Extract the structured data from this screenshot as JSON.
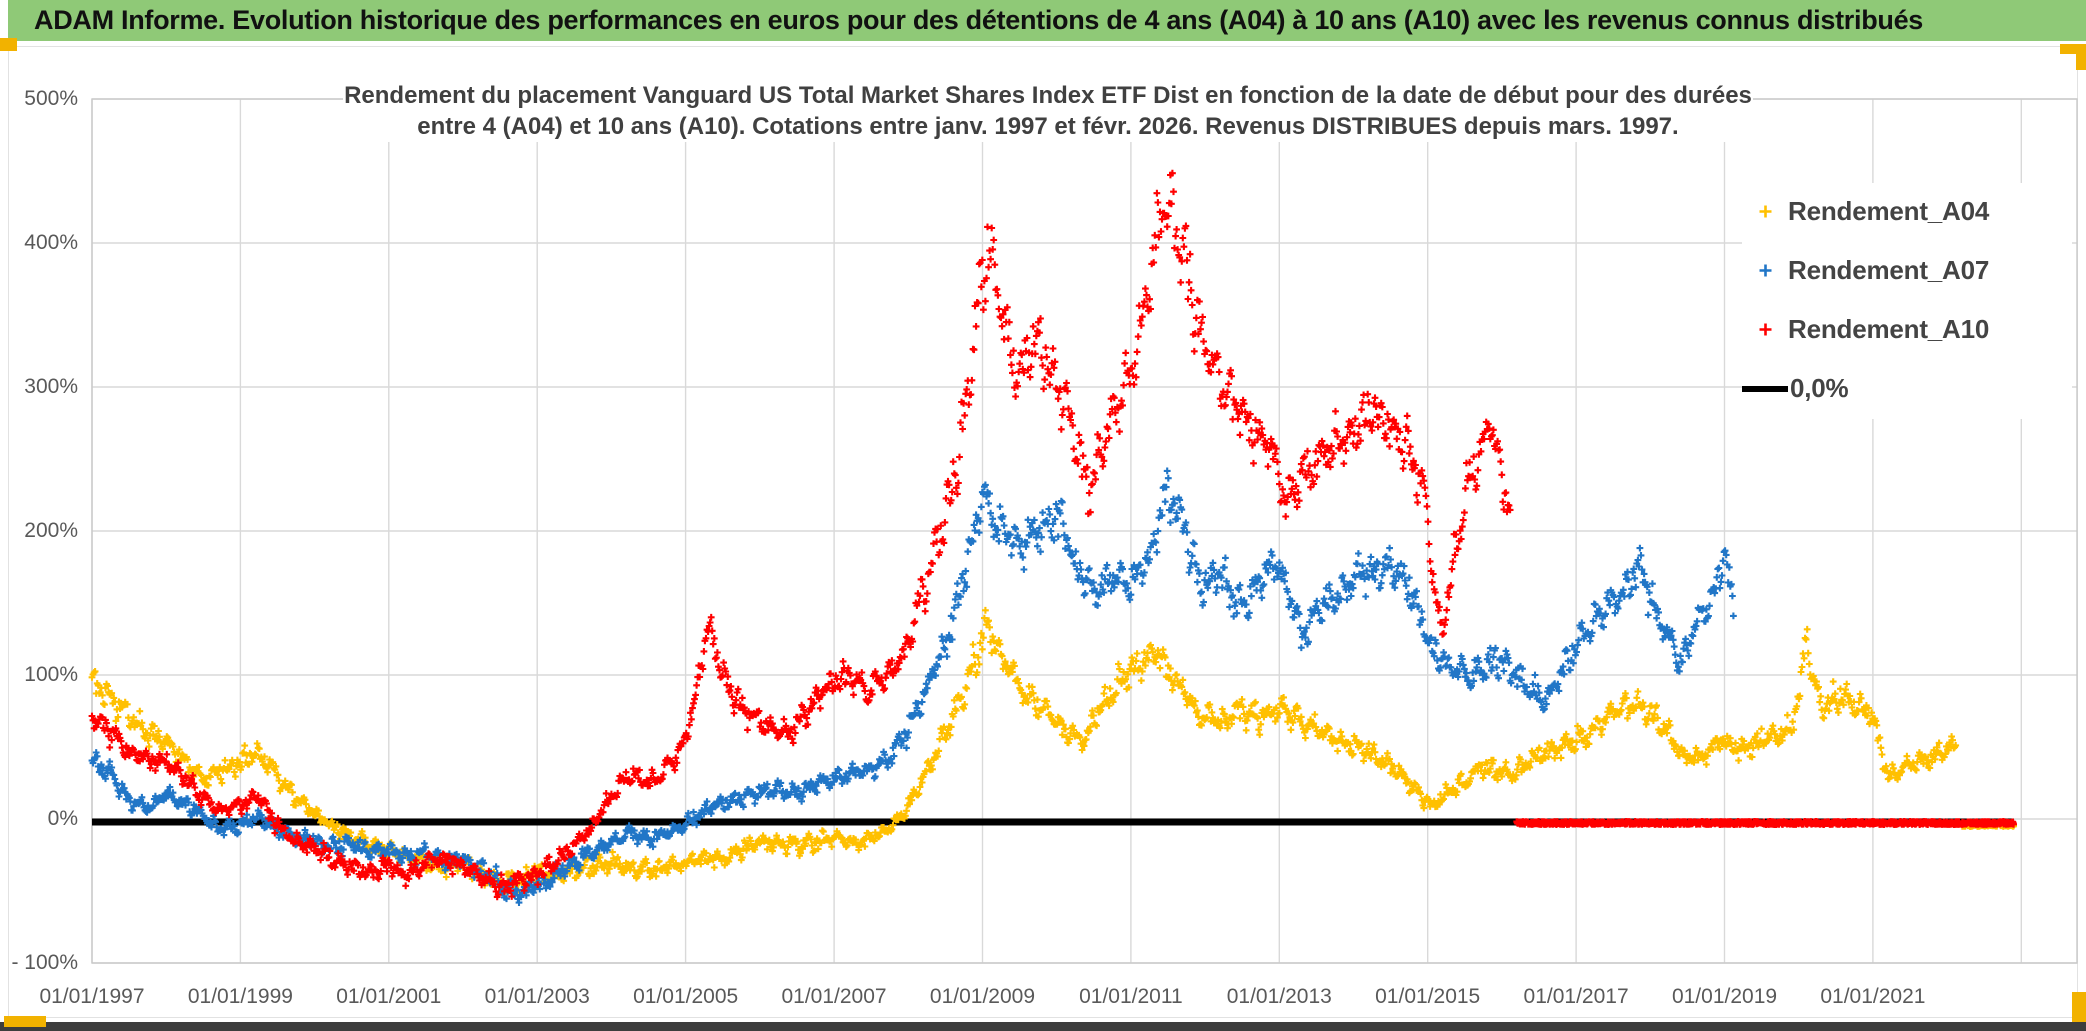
{
  "banner": {
    "title": "ADAM Informe. Evolution historique des performances en euros pour des détentions de 4 ans (A04) à 10 ans (A10) avec les revenus connus distribués"
  },
  "colors": {
    "banner_green": "#8FC977",
    "accent_orange": "#F2B200",
    "grid": "#D9D9D9",
    "plot_border": "#C9C9C9",
    "axis_text": "#595959",
    "title_text": "#404040",
    "legend_text": "#444444",
    "bottom_bar": "#3D3D3D",
    "series_a04": "#FFC000",
    "series_a07": "#2176C7",
    "series_a10": "#FF0000",
    "zero_line": "#000000"
  },
  "chart_data": {
    "type": "scatter",
    "title_line1": "Rendement du placement Vanguard US Total Market Shares Index ETF Dist en fonction de la date de début pour des durées",
    "title_line2": "entre 4 (A04) et 10 ans (A10). Cotations entre janv. 1997 et févr. 2026. Revenus DISTRIBUES depuis mars. 1997.",
    "x_tick_labels": [
      "01/01/1997",
      "01/01/1999",
      "01/01/2001",
      "01/01/2003",
      "01/01/2005",
      "01/01/2007",
      "01/01/2009",
      "01/01/2011",
      "01/01/2013",
      "01/01/2015",
      "01/01/2017",
      "01/01/2019",
      "01/01/2021"
    ],
    "x_tick_years": [
      1997,
      1999,
      2001,
      2003,
      2005,
      2007,
      2009,
      2011,
      2013,
      2015,
      2017,
      2019,
      2021
    ],
    "x_grid_years": [
      1997,
      1999,
      2001,
      2003,
      2005,
      2007,
      2009,
      2011,
      2013,
      2015,
      2017,
      2019,
      2021,
      2023
    ],
    "y_tick_labels": [
      "500%",
      "400%",
      "300%",
      "200%",
      "100%",
      "0%",
      "- 100%"
    ],
    "y_tick_values": [
      500,
      400,
      300,
      200,
      100,
      0,
      -100
    ],
    "x_range_years": [
      1997.0,
      2023.75
    ],
    "y_range_pct": [
      -100,
      500
    ],
    "grid": true,
    "legend_position": "right-top",
    "marker": "plus",
    "series": [
      {
        "name": "Rendement_A04",
        "color": "#FFC000",
        "seed": 7,
        "anchors": [
          [
            1997.0,
            95
          ],
          [
            1997.17,
            86
          ],
          [
            1997.42,
            76
          ],
          [
            1997.67,
            63
          ],
          [
            1998.0,
            52
          ],
          [
            1998.25,
            42
          ],
          [
            1998.5,
            28
          ],
          [
            1998.75,
            34
          ],
          [
            1999.0,
            40
          ],
          [
            1999.25,
            47
          ],
          [
            1999.5,
            30
          ],
          [
            1999.75,
            14
          ],
          [
            2000.0,
            4
          ],
          [
            2000.25,
            -6
          ],
          [
            2000.5,
            -13
          ],
          [
            2000.75,
            -18
          ],
          [
            2001.0,
            -22
          ],
          [
            2001.4,
            -28
          ],
          [
            2001.75,
            -34
          ],
          [
            2002.0,
            -30
          ],
          [
            2002.25,
            -38
          ],
          [
            2002.5,
            -45
          ],
          [
            2002.75,
            -41
          ],
          [
            2003.0,
            -36
          ],
          [
            2003.2,
            -40
          ],
          [
            2003.5,
            -35
          ],
          [
            2004.0,
            -31
          ],
          [
            2004.5,
            -36
          ],
          [
            2005.0,
            -30
          ],
          [
            2005.5,
            -27
          ],
          [
            2006.0,
            -16
          ],
          [
            2006.5,
            -19
          ],
          [
            2007.0,
            -13
          ],
          [
            2007.4,
            -16
          ],
          [
            2007.75,
            -6
          ],
          [
            2007.95,
            4
          ],
          [
            2008.2,
            28
          ],
          [
            2008.45,
            55
          ],
          [
            2008.7,
            82
          ],
          [
            2008.9,
            112
          ],
          [
            2009.05,
            132
          ],
          [
            2009.2,
            118
          ],
          [
            2009.5,
            92
          ],
          [
            2009.75,
            80
          ],
          [
            2010.1,
            62
          ],
          [
            2010.35,
            54
          ],
          [
            2010.7,
            86
          ],
          [
            2011.0,
            104
          ],
          [
            2011.35,
            116
          ],
          [
            2011.6,
            96
          ],
          [
            2011.9,
            73
          ],
          [
            2012.2,
            67
          ],
          [
            2012.45,
            76
          ],
          [
            2012.75,
            71
          ],
          [
            2013.0,
            76
          ],
          [
            2013.45,
            64
          ],
          [
            2013.75,
            56
          ],
          [
            2014.2,
            46
          ],
          [
            2014.5,
            38
          ],
          [
            2014.85,
            19
          ],
          [
            2015.05,
            9
          ],
          [
            2015.45,
            24
          ],
          [
            2015.75,
            38
          ],
          [
            2016.1,
            30
          ],
          [
            2016.45,
            42
          ],
          [
            2016.75,
            50
          ],
          [
            2017.1,
            56
          ],
          [
            2017.5,
            74
          ],
          [
            2017.85,
            80
          ],
          [
            2018.1,
            68
          ],
          [
            2018.45,
            44
          ],
          [
            2018.7,
            43
          ],
          [
            2018.95,
            56
          ],
          [
            2019.2,
            48
          ],
          [
            2019.5,
            55
          ],
          [
            2019.9,
            62
          ],
          [
            2020.02,
            90
          ],
          [
            2020.1,
            128
          ],
          [
            2020.2,
            95
          ],
          [
            2020.3,
            78
          ],
          [
            2020.55,
            86
          ],
          [
            2020.8,
            80
          ],
          [
            2021.0,
            72
          ],
          [
            2021.2,
            28
          ],
          [
            2021.45,
            38
          ],
          [
            2021.75,
            42
          ],
          [
            2022.0,
            47
          ],
          [
            2022.12,
            52
          ]
        ]
      },
      {
        "name": "Rendement_A07",
        "color": "#2176C7",
        "seed": 13,
        "anchors": [
          [
            1997.0,
            42
          ],
          [
            1997.25,
            31
          ],
          [
            1997.5,
            13
          ],
          [
            1997.75,
            7
          ],
          [
            1998.0,
            17
          ],
          [
            1998.25,
            11
          ],
          [
            1998.5,
            2
          ],
          [
            1998.75,
            -8
          ],
          [
            1999.0,
            -4
          ],
          [
            1999.25,
            2
          ],
          [
            1999.5,
            -8
          ],
          [
            1999.75,
            -13
          ],
          [
            2000.0,
            -15
          ],
          [
            2000.25,
            -20
          ],
          [
            2000.5,
            -17
          ],
          [
            2000.75,
            -24
          ],
          [
            2001.0,
            -21
          ],
          [
            2001.25,
            -27
          ],
          [
            2001.5,
            -24
          ],
          [
            2001.75,
            -30
          ],
          [
            2002.0,
            -28
          ],
          [
            2002.25,
            -35
          ],
          [
            2002.5,
            -45
          ],
          [
            2002.75,
            -52
          ],
          [
            2003.0,
            -47
          ],
          [
            2003.25,
            -39
          ],
          [
            2003.5,
            -30
          ],
          [
            2003.75,
            -24
          ],
          [
            2004.0,
            -15
          ],
          [
            2004.25,
            -10
          ],
          [
            2004.5,
            -15
          ],
          [
            2004.75,
            -8
          ],
          [
            2005.0,
            -4
          ],
          [
            2005.25,
            6
          ],
          [
            2005.5,
            11
          ],
          [
            2005.75,
            15
          ],
          [
            2006.0,
            18
          ],
          [
            2006.25,
            22
          ],
          [
            2006.5,
            17
          ],
          [
            2006.75,
            24
          ],
          [
            2007.0,
            28
          ],
          [
            2007.25,
            31
          ],
          [
            2007.5,
            35
          ],
          [
            2007.75,
            43
          ],
          [
            2008.0,
            62
          ],
          [
            2008.25,
            92
          ],
          [
            2008.5,
            122
          ],
          [
            2008.75,
            168
          ],
          [
            2009.0,
            225
          ],
          [
            2009.2,
            205
          ],
          [
            2009.5,
            190
          ],
          [
            2009.75,
            200
          ],
          [
            2010.0,
            212
          ],
          [
            2010.25,
            178
          ],
          [
            2010.5,
            158
          ],
          [
            2010.75,
            170
          ],
          [
            2011.0,
            164
          ],
          [
            2011.25,
            182
          ],
          [
            2011.5,
            228
          ],
          [
            2011.7,
            205
          ],
          [
            2011.95,
            158
          ],
          [
            2012.2,
            172
          ],
          [
            2012.45,
            148
          ],
          [
            2012.7,
            162
          ],
          [
            2012.95,
            182
          ],
          [
            2013.3,
            128
          ],
          [
            2013.6,
            148
          ],
          [
            2014.0,
            166
          ],
          [
            2014.45,
            176
          ],
          [
            2014.8,
            158
          ],
          [
            2015.05,
            118
          ],
          [
            2015.3,
            104
          ],
          [
            2015.6,
            100
          ],
          [
            2015.95,
            112
          ],
          [
            2016.3,
            94
          ],
          [
            2016.6,
            84
          ],
          [
            2016.95,
            116
          ],
          [
            2017.3,
            142
          ],
          [
            2017.6,
            152
          ],
          [
            2017.85,
            176
          ],
          [
            2018.1,
            142
          ],
          [
            2018.4,
            108
          ],
          [
            2018.6,
            134
          ],
          [
            2018.85,
            152
          ],
          [
            2019.0,
            188
          ],
          [
            2019.12,
            148
          ]
        ]
      },
      {
        "name": "Rendement_A10",
        "color": "#FF0000",
        "seed": 29,
        "anchors": [
          [
            1997.0,
            72
          ],
          [
            1997.25,
            61
          ],
          [
            1997.5,
            46
          ],
          [
            1997.75,
            42
          ],
          [
            1998.0,
            40
          ],
          [
            1998.25,
            29
          ],
          [
            1998.5,
            14
          ],
          [
            1998.75,
            5
          ],
          [
            1999.0,
            10
          ],
          [
            1999.25,
            16
          ],
          [
            1999.5,
            -6
          ],
          [
            1999.75,
            -16
          ],
          [
            2000.0,
            -21
          ],
          [
            2000.25,
            -28
          ],
          [
            2000.5,
            -33
          ],
          [
            2000.75,
            -37
          ],
          [
            2001.0,
            -32
          ],
          [
            2001.25,
            -39
          ],
          [
            2001.5,
            -30
          ],
          [
            2001.75,
            -28
          ],
          [
            2002.0,
            -33
          ],
          [
            2002.25,
            -41
          ],
          [
            2002.5,
            -48
          ],
          [
            2002.75,
            -44
          ],
          [
            2003.0,
            -38
          ],
          [
            2003.25,
            -29
          ],
          [
            2003.5,
            -19
          ],
          [
            2003.75,
            -4
          ],
          [
            2004.0,
            16
          ],
          [
            2004.25,
            31
          ],
          [
            2004.5,
            24
          ],
          [
            2004.75,
            36
          ],
          [
            2005.0,
            55
          ],
          [
            2005.15,
            90
          ],
          [
            2005.3,
            135
          ],
          [
            2005.45,
            110
          ],
          [
            2005.6,
            88
          ],
          [
            2005.8,
            75
          ],
          [
            2006.0,
            68
          ],
          [
            2006.2,
            60
          ],
          [
            2006.45,
            62
          ],
          [
            2006.6,
            72
          ],
          [
            2006.8,
            85
          ],
          [
            2007.0,
            95
          ],
          [
            2007.2,
            100
          ],
          [
            2007.45,
            88
          ],
          [
            2007.6,
            95
          ],
          [
            2007.8,
            105
          ],
          [
            2007.95,
            115
          ],
          [
            2008.1,
            140
          ],
          [
            2008.3,
            175
          ],
          [
            2008.5,
            215
          ],
          [
            2008.65,
            245
          ],
          [
            2008.8,
            295
          ],
          [
            2008.95,
            355
          ],
          [
            2009.1,
            405
          ],
          [
            2009.25,
            355
          ],
          [
            2009.45,
            310
          ],
          [
            2009.6,
            322
          ],
          [
            2009.75,
            332
          ],
          [
            2009.95,
            312
          ],
          [
            2010.1,
            292
          ],
          [
            2010.25,
            262
          ],
          [
            2010.45,
            228
          ],
          [
            2010.6,
            258
          ],
          [
            2010.75,
            276
          ],
          [
            2010.95,
            302
          ],
          [
            2011.1,
            332
          ],
          [
            2011.3,
            385
          ],
          [
            2011.45,
            432
          ],
          [
            2011.6,
            412
          ],
          [
            2011.75,
            382
          ],
          [
            2011.95,
            333
          ],
          [
            2012.1,
            312
          ],
          [
            2012.35,
            292
          ],
          [
            2012.6,
            272
          ],
          [
            2012.85,
            262
          ],
          [
            2013.1,
            222
          ],
          [
            2013.35,
            238
          ],
          [
            2013.6,
            254
          ],
          [
            2013.85,
            262
          ],
          [
            2014.1,
            272
          ],
          [
            2014.25,
            283
          ],
          [
            2014.5,
            272
          ],
          [
            2014.75,
            257
          ],
          [
            2014.95,
            232
          ],
          [
            2015.1,
            155
          ],
          [
            2015.2,
            128
          ],
          [
            2015.35,
            180
          ],
          [
            2015.55,
            232
          ],
          [
            2015.7,
            252
          ],
          [
            2015.85,
            278
          ],
          [
            2016.0,
            235
          ],
          [
            2016.12,
            215
          ]
        ]
      }
    ],
    "zero_line": {
      "label": "0,0%",
      "value": 0,
      "x_start": 1997.0,
      "x_end": 2022.9,
      "color": "#000000"
    },
    "unknown_future_fill": [
      {
        "series": "Rendement_A10",
        "color": "#FF0000",
        "value": 0,
        "x_start": 2016.2,
        "x_end": 2022.9,
        "seed": 41
      },
      {
        "series": "Rendement_A04",
        "color": "#FFC000",
        "value": 0,
        "x_start": 2022.2,
        "x_end": 2022.9,
        "seed": 43
      }
    ]
  }
}
